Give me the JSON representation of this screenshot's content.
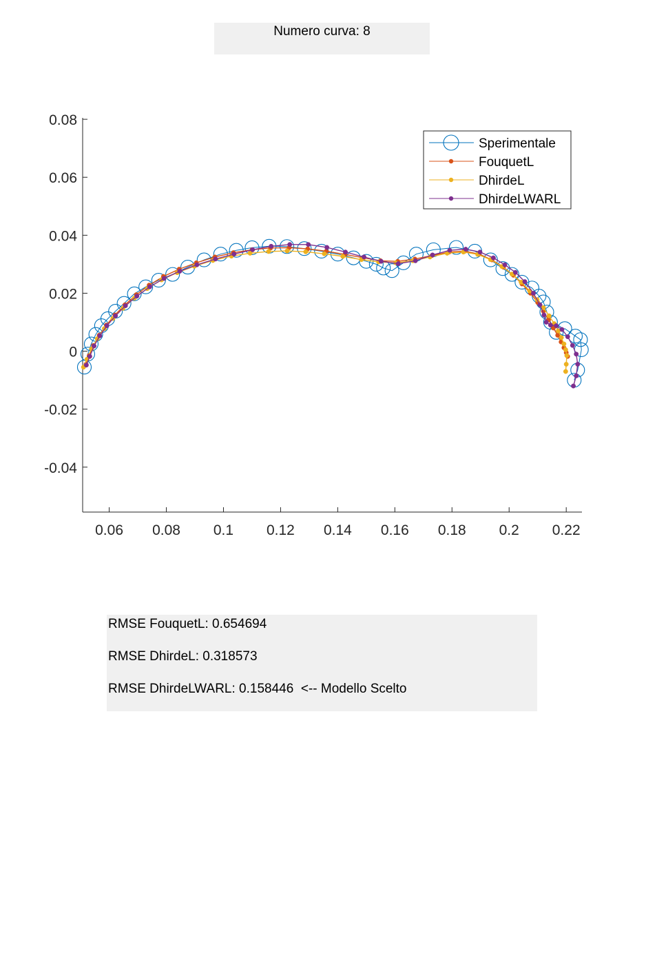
{
  "header": {
    "title": "Numero curva: 8"
  },
  "rmse": {
    "lines": [
      "RMSE FouquetL: 0.654694",
      "RMSE DhirdeL: 0.318573",
      "RMSE DhirdeLWARL: 0.158446  <-- Modello Scelto"
    ]
  },
  "chart_data": {
    "type": "line",
    "title": "",
    "xlabel": "",
    "ylabel": "",
    "xlim": [
      0.0507,
      0.2255
    ],
    "ylim": [
      -0.0555,
      0.0805
    ],
    "xticks": [
      0.06,
      0.08,
      0.1,
      0.12,
      0.14,
      0.16,
      0.18,
      0.2,
      0.22
    ],
    "xtick_labels": [
      "0.06",
      "0.08",
      "0.1",
      "0.12",
      "0.14",
      "0.16",
      "0.18",
      "0.2",
      "0.22"
    ],
    "yticks": [
      -0.04,
      -0.02,
      0,
      0.02,
      0.04,
      0.06,
      0.08
    ],
    "ytick_labels": [
      "-0.04",
      "-0.02",
      "0",
      "0.02",
      "0.04",
      "0.06",
      "0.08"
    ],
    "grid": false,
    "legend_position": "top-right",
    "series": [
      {
        "name": "Sperimentale",
        "color": "#0072BD",
        "marker": "open-circle",
        "x": [
          0.0513,
          0.0525,
          0.0537,
          0.0553,
          0.0573,
          0.0595,
          0.0622,
          0.0652,
          0.0688,
          0.0728,
          0.0773,
          0.0822,
          0.0875,
          0.0932,
          0.099,
          0.1045,
          0.11,
          0.116,
          0.1222,
          0.1283,
          0.1343,
          0.14,
          0.1455,
          0.15,
          0.1535,
          0.156,
          0.159,
          0.163,
          0.1675,
          0.1735,
          0.1815,
          0.188,
          0.1935,
          0.1978,
          0.201,
          0.2045,
          0.208,
          0.2105,
          0.212,
          0.2132,
          0.2145,
          0.2165,
          0.2195,
          0.2232,
          0.225,
          0.2253,
          0.224,
          0.2228
        ],
        "y": [
          -0.0055,
          -0.001,
          0.0025,
          0.0058,
          0.0088,
          0.0112,
          0.0138,
          0.0165,
          0.0198,
          0.0222,
          0.0245,
          0.0265,
          0.029,
          0.0315,
          0.0335,
          0.0348,
          0.0357,
          0.0362,
          0.0361,
          0.0354,
          0.0345,
          0.0335,
          0.0322,
          0.031,
          0.03,
          0.0287,
          0.0278,
          0.0305,
          0.0335,
          0.035,
          0.0358,
          0.0345,
          0.0315,
          0.0285,
          0.0265,
          0.0238,
          0.0218,
          0.019,
          0.017,
          0.0135,
          0.01,
          0.0065,
          0.0078,
          0.0052,
          0.004,
          0.0005,
          -0.0065,
          -0.01
        ]
      },
      {
        "name": "FouquetL",
        "color": "#D95319",
        "marker": "dot",
        "x": [
          0.0519,
          0.053,
          0.0545,
          0.0565,
          0.059,
          0.062,
          0.0655,
          0.0695,
          0.074,
          0.079,
          0.0845,
          0.0905,
          0.097,
          0.1035,
          0.11,
          0.1165,
          0.123,
          0.1295,
          0.136,
          0.1425,
          0.149,
          0.155,
          0.161,
          0.167,
          0.173,
          0.179,
          0.1845,
          0.1895,
          0.194,
          0.198,
          0.2015,
          0.2045,
          0.2075,
          0.21,
          0.212,
          0.2138,
          0.2155,
          0.217,
          0.2182,
          0.2192,
          0.22,
          0.2205
        ],
        "y": [
          -0.0045,
          -0.0015,
          0.002,
          0.0055,
          0.009,
          0.0125,
          0.016,
          0.0195,
          0.0228,
          0.0258,
          0.0283,
          0.0305,
          0.0325,
          0.034,
          0.035,
          0.0356,
          0.0357,
          0.0353,
          0.0345,
          0.0334,
          0.0322,
          0.0312,
          0.031,
          0.0318,
          0.033,
          0.0342,
          0.0345,
          0.0335,
          0.0315,
          0.029,
          0.0262,
          0.0232,
          0.02,
          0.0168,
          0.0138,
          0.0108,
          0.008,
          0.0055,
          0.0032,
          0.0012,
          -0.0005,
          -0.0018
        ]
      },
      {
        "name": "DhirdeL",
        "color": "#EDB120",
        "marker": "dot",
        "x": [
          0.051,
          0.0522,
          0.0538,
          0.0558,
          0.0583,
          0.0613,
          0.0648,
          0.0688,
          0.0733,
          0.0783,
          0.0838,
          0.0898,
          0.0963,
          0.1028,
          0.1093,
          0.1158,
          0.1223,
          0.1288,
          0.1353,
          0.1418,
          0.1483,
          0.1543,
          0.1603,
          0.1663,
          0.1723,
          0.1783,
          0.184,
          0.189,
          0.1935,
          0.1975,
          0.201,
          0.2042,
          0.2072,
          0.2098,
          0.212,
          0.214,
          0.2158,
          0.2172,
          0.2183,
          0.2192,
          0.2198,
          0.2202,
          0.22,
          0.2198
        ],
        "y": [
          -0.0055,
          -0.0028,
          0.0008,
          0.0043,
          0.0078,
          0.0113,
          0.0148,
          0.0183,
          0.0216,
          0.0246,
          0.0271,
          0.0293,
          0.0313,
          0.0328,
          0.0338,
          0.0344,
          0.0346,
          0.0343,
          0.0336,
          0.0327,
          0.0316,
          0.0308,
          0.0305,
          0.0312,
          0.0325,
          0.0338,
          0.0342,
          0.0334,
          0.0316,
          0.0292,
          0.0266,
          0.0238,
          0.0208,
          0.0178,
          0.015,
          0.0122,
          0.0095,
          0.007,
          0.0047,
          0.0025,
          0.0005,
          -0.0015,
          -0.0045,
          -0.007
        ]
      },
      {
        "name": "DhirdeLWARL",
        "color": "#7E2F8E",
        "marker": "dot",
        "x": [
          0.052,
          0.0532,
          0.0547,
          0.0567,
          0.0592,
          0.0622,
          0.0657,
          0.0697,
          0.0742,
          0.0792,
          0.0847,
          0.0907,
          0.0972,
          0.1037,
          0.1102,
          0.1167,
          0.1232,
          0.1297,
          0.1362,
          0.1427,
          0.1492,
          0.1552,
          0.1612,
          0.1672,
          0.1732,
          0.1792,
          0.1848,
          0.1898,
          0.1945,
          0.1985,
          0.2022,
          0.2055,
          0.2085,
          0.2108,
          0.2122,
          0.213,
          0.2145,
          0.2165,
          0.2185,
          0.2205,
          0.2222,
          0.2235,
          0.224,
          0.2235,
          0.2225
        ],
        "y": [
          -0.0048,
          -0.0018,
          0.0018,
          0.0053,
          0.0088,
          0.0122,
          0.0157,
          0.019,
          0.0222,
          0.0251,
          0.0276,
          0.0298,
          0.0318,
          0.0335,
          0.035,
          0.0362,
          0.0368,
          0.0368,
          0.0358,
          0.0342,
          0.0325,
          0.031,
          0.0302,
          0.0312,
          0.0332,
          0.0348,
          0.0352,
          0.0342,
          0.0322,
          0.0298,
          0.0272,
          0.024,
          0.02,
          0.016,
          0.0125,
          0.01,
          0.009,
          0.0088,
          0.0075,
          0.005,
          0.002,
          -0.001,
          -0.0045,
          -0.0085,
          -0.012
        ]
      }
    ]
  }
}
